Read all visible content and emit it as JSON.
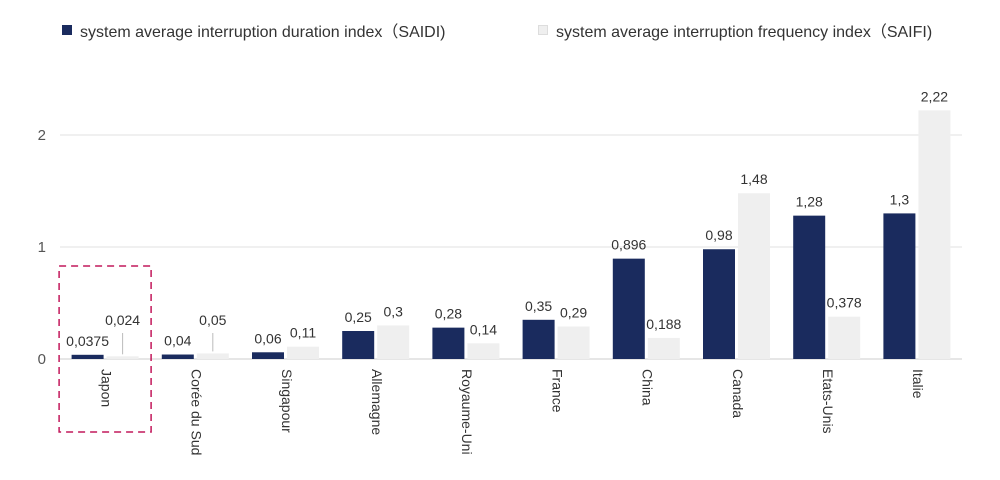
{
  "chart_data": {
    "type": "bar",
    "categories": [
      "Japon",
      "Corée du Sud",
      "Singapour",
      "Allemagne",
      "Royaume-Uni",
      "France",
      "China",
      "Canada",
      "Etats-Unis",
      "Italie"
    ],
    "series": [
      {
        "name": "system average interruption duration index（SAIDI)",
        "color": "#1a2b5e",
        "values": [
          0.0375,
          0.04,
          0.06,
          0.25,
          0.28,
          0.35,
          0.896,
          0.98,
          1.28,
          1.3
        ],
        "labels": [
          "0,0375",
          "0,04",
          "0,06",
          "0,25",
          "0,28",
          "0,35",
          "0,896",
          "0,98",
          "1,28",
          "1,3"
        ]
      },
      {
        "name": "system average interruption frequency index（SAIFI)",
        "color": "#efefef",
        "values": [
          0.024,
          0.05,
          0.11,
          0.3,
          0.14,
          0.29,
          0.188,
          1.48,
          0.378,
          2.22
        ],
        "labels": [
          "0,024",
          "0,05",
          "0,11",
          "0,3",
          "0,14",
          "0,29",
          "0,188",
          "1,48",
          "0,378",
          "2,22"
        ]
      }
    ],
    "yticks": [
      0,
      1,
      2
    ],
    "ylim": [
      0,
      2.22
    ],
    "grid": true,
    "legend_position": "top",
    "highlight_category": "Japon",
    "highlight_color": "#c2185b"
  }
}
